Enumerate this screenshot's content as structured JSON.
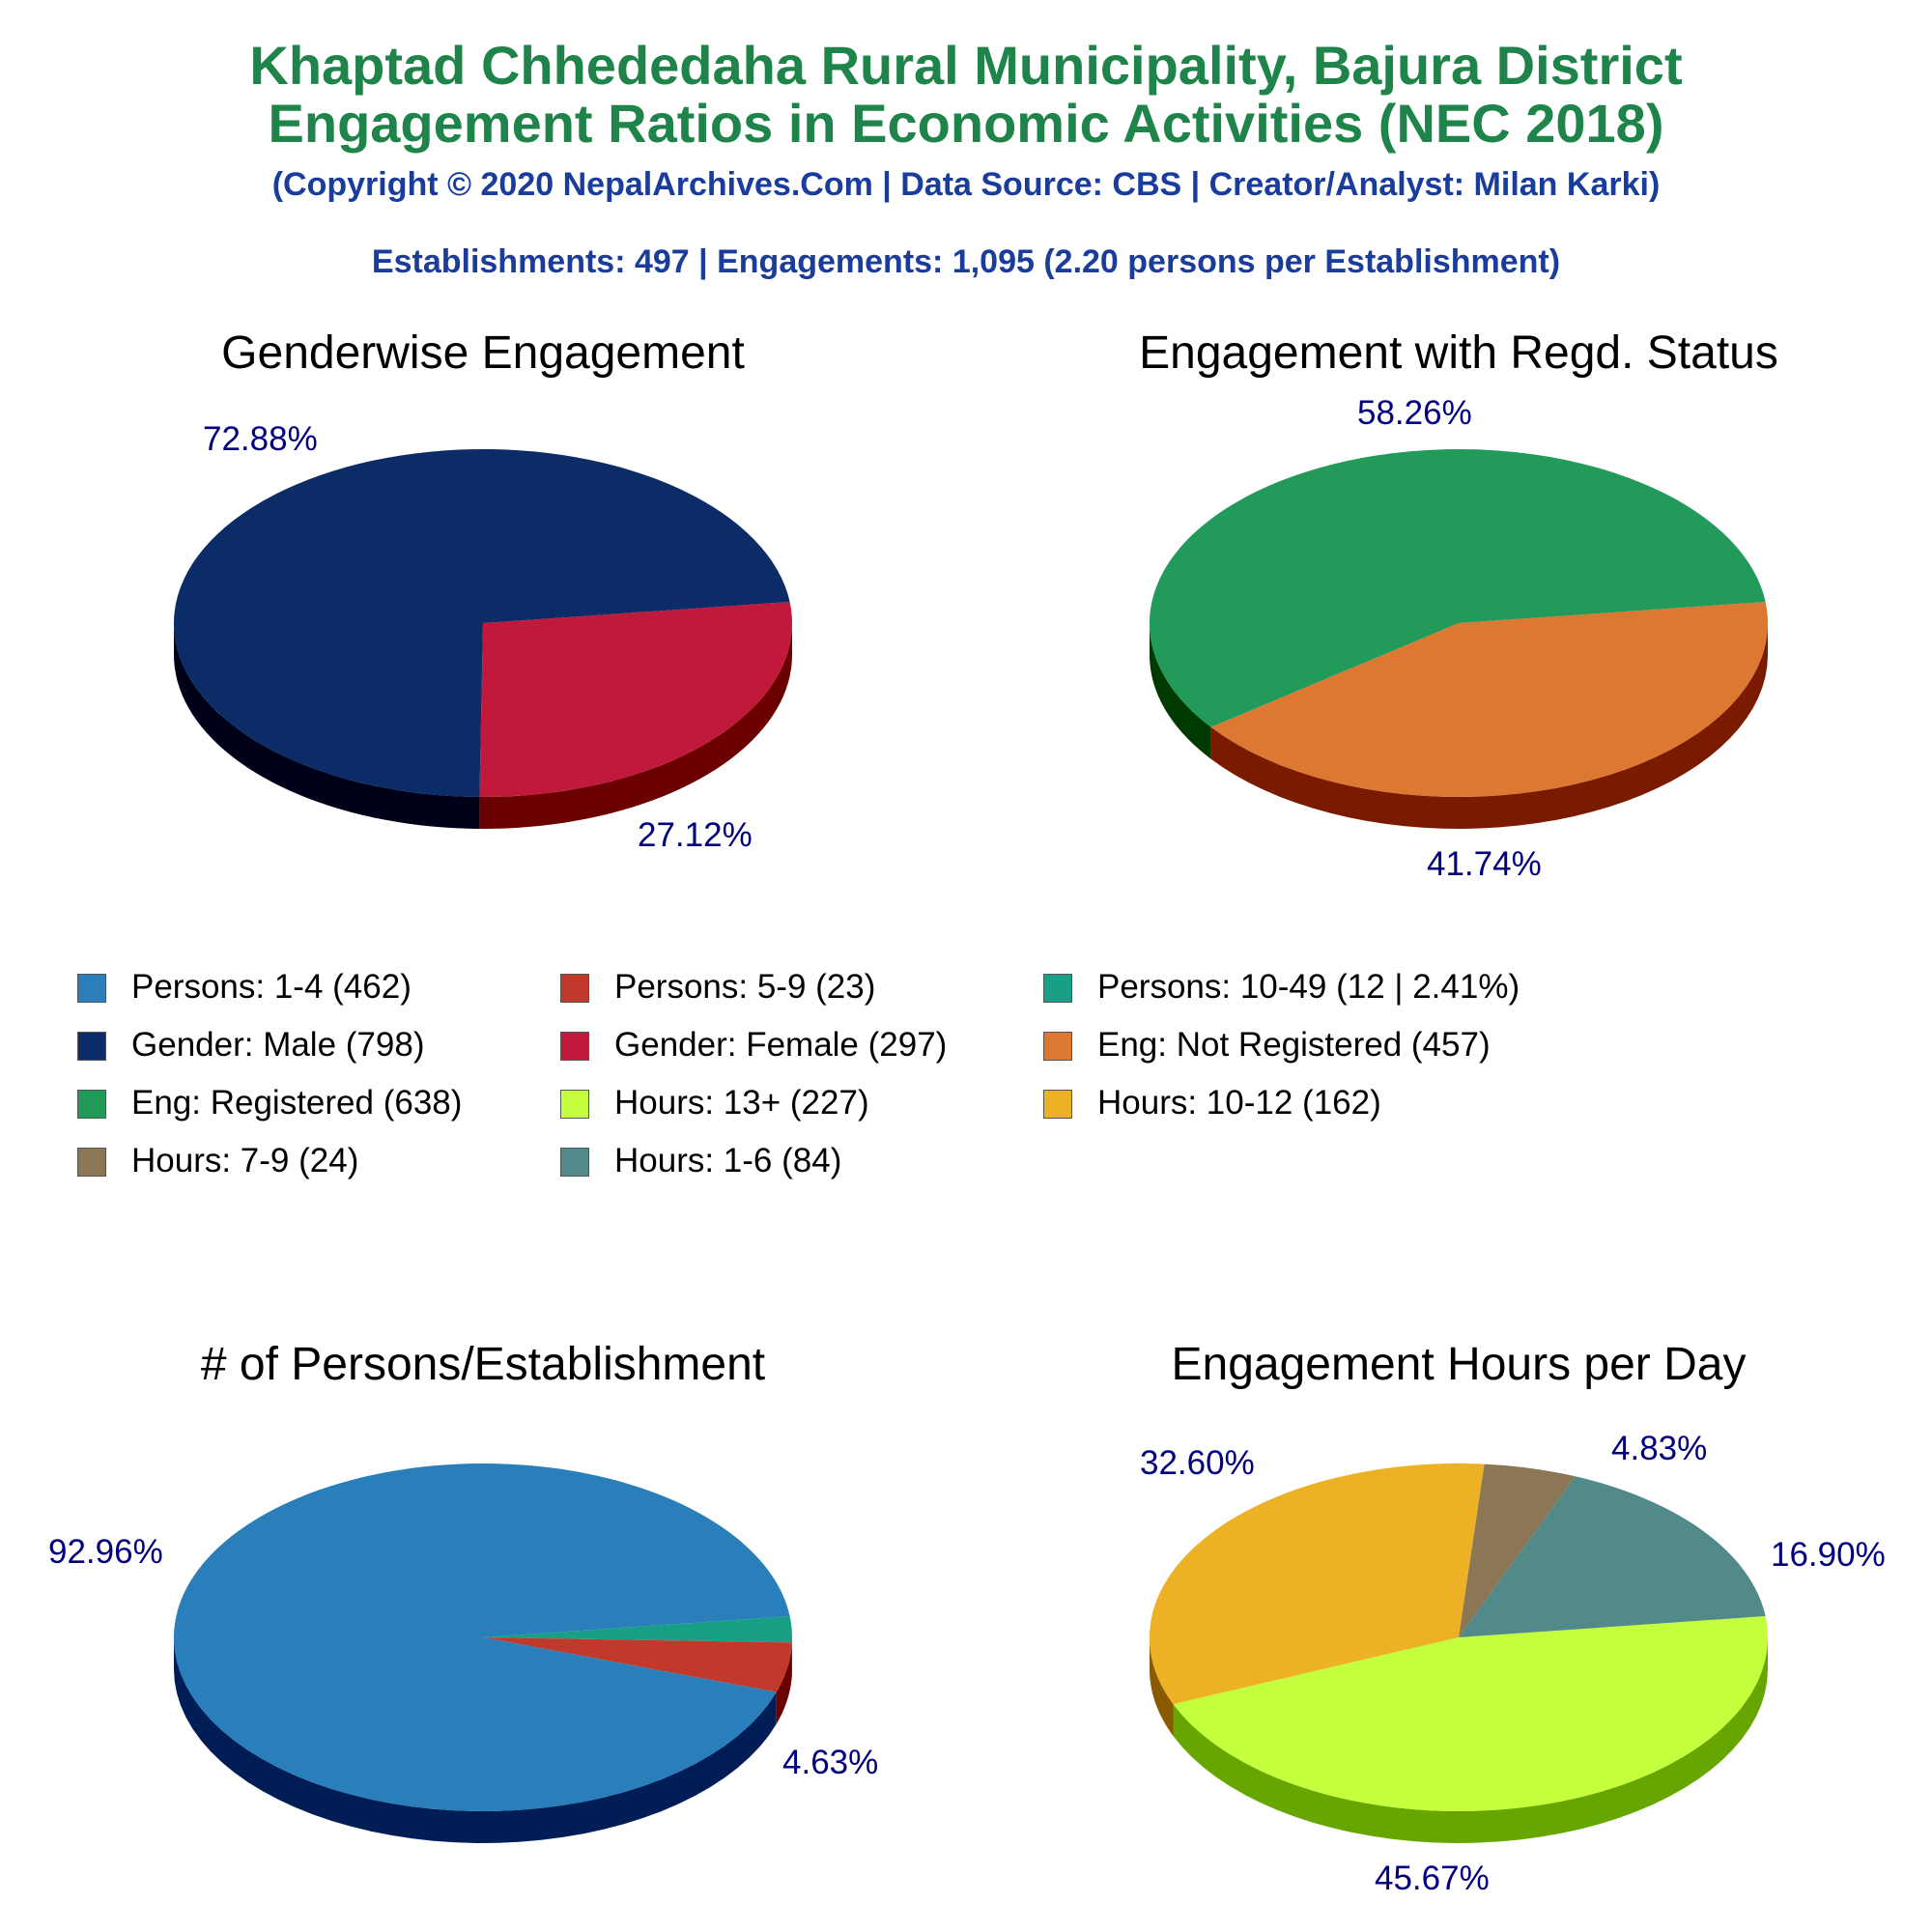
{
  "header": {
    "title_line1": "Khaptad Chhededaha Rural Municipality, Bajura District",
    "title_line2": "Engagement Ratios in Economic Activities (NEC 2018)",
    "copyright": "(Copyright © 2020 NepalArchives.Com | Data Source: CBS | Creator/Analyst: Milan Karki)",
    "summary": "Establishments: 497 | Engagements: 1,095 (2.20 persons per Establishment)"
  },
  "legend": [
    {
      "label": "Persons: 1-4 (462)",
      "color": "#2a7fba"
    },
    {
      "label": "Persons: 5-9 (23)",
      "color": "#c0392b"
    },
    {
      "label": "Persons: 10-49 (12 | 2.41%)",
      "color": "#17a085"
    },
    {
      "label": "Gender: Male (798)",
      "color": "#0b2c66"
    },
    {
      "label": "Gender: Female (297)",
      "color": "#c0193b"
    },
    {
      "label": "Eng: Not Registered (457)",
      "color": "#dd7833"
    },
    {
      "label": "Eng: Registered (638)",
      "color": "#229a59"
    },
    {
      "label": "Hours: 13+ (227)",
      "color": "#c3ff3c"
    },
    {
      "label": "Hours: 10-12 (162)",
      "color": "#ecb124"
    },
    {
      "label": "Hours: 7-9 (24)",
      "color": "#8b7656"
    },
    {
      "label": "Hours: 1-6 (84)",
      "color": "#528a8a"
    }
  ],
  "chart_data": [
    {
      "type": "pie",
      "title": "Genderwise Engagement",
      "start_angle_deg": 7,
      "slices": [
        {
          "name": "Gender: Female",
          "value": 297,
          "label": "27.12%",
          "color": "#c0193b",
          "side": "#6b0000"
        },
        {
          "name": "Gender: Male",
          "value": 798,
          "label": "72.88%",
          "color": "#0b2c66",
          "side": "#000018"
        }
      ]
    },
    {
      "type": "pie",
      "title": "Engagement with Regd. Status",
      "start_angle_deg": 7,
      "slices": [
        {
          "name": "Eng: Not Registered",
          "value": 457,
          "label": "41.74%",
          "color": "#dd7833",
          "side": "#7a1a00"
        },
        {
          "name": "Eng: Registered",
          "value": 638,
          "label": "58.26%",
          "color": "#229a59",
          "side": "#003a00"
        }
      ]
    },
    {
      "type": "pie",
      "title": "# of Persons/Establishment",
      "start_angle_deg": 7,
      "slices": [
        {
          "name": "Persons: 10-49",
          "value": 12,
          "label": "",
          "color": "#17a085",
          "side": "#004030"
        },
        {
          "name": "Persons: 5-9",
          "value": 23,
          "label": "4.63%",
          "color": "#c0392b",
          "side": "#6b0000"
        },
        {
          "name": "Persons: 1-4",
          "value": 462,
          "label": "92.96%",
          "color": "#2a7fba",
          "side": "#001e55"
        }
      ]
    },
    {
      "type": "pie",
      "title": "Engagement Hours per Day",
      "start_angle_deg": 7,
      "slices": [
        {
          "name": "Hours: 13+",
          "value": 227,
          "label": "45.67%",
          "color": "#c3ff3c",
          "side": "#67a600"
        },
        {
          "name": "Hours: 10-12",
          "value": 162,
          "label": "32.60%",
          "color": "#ecb124",
          "side": "#8a5a00"
        },
        {
          "name": "Hours: 7-9",
          "value": 24,
          "label": "4.83%",
          "color": "#8b7656",
          "side": "#3a2a10"
        },
        {
          "name": "Hours: 1-6",
          "value": 84,
          "label": "16.90%",
          "color": "#528a8a",
          "side": "#0a3030"
        }
      ]
    }
  ]
}
